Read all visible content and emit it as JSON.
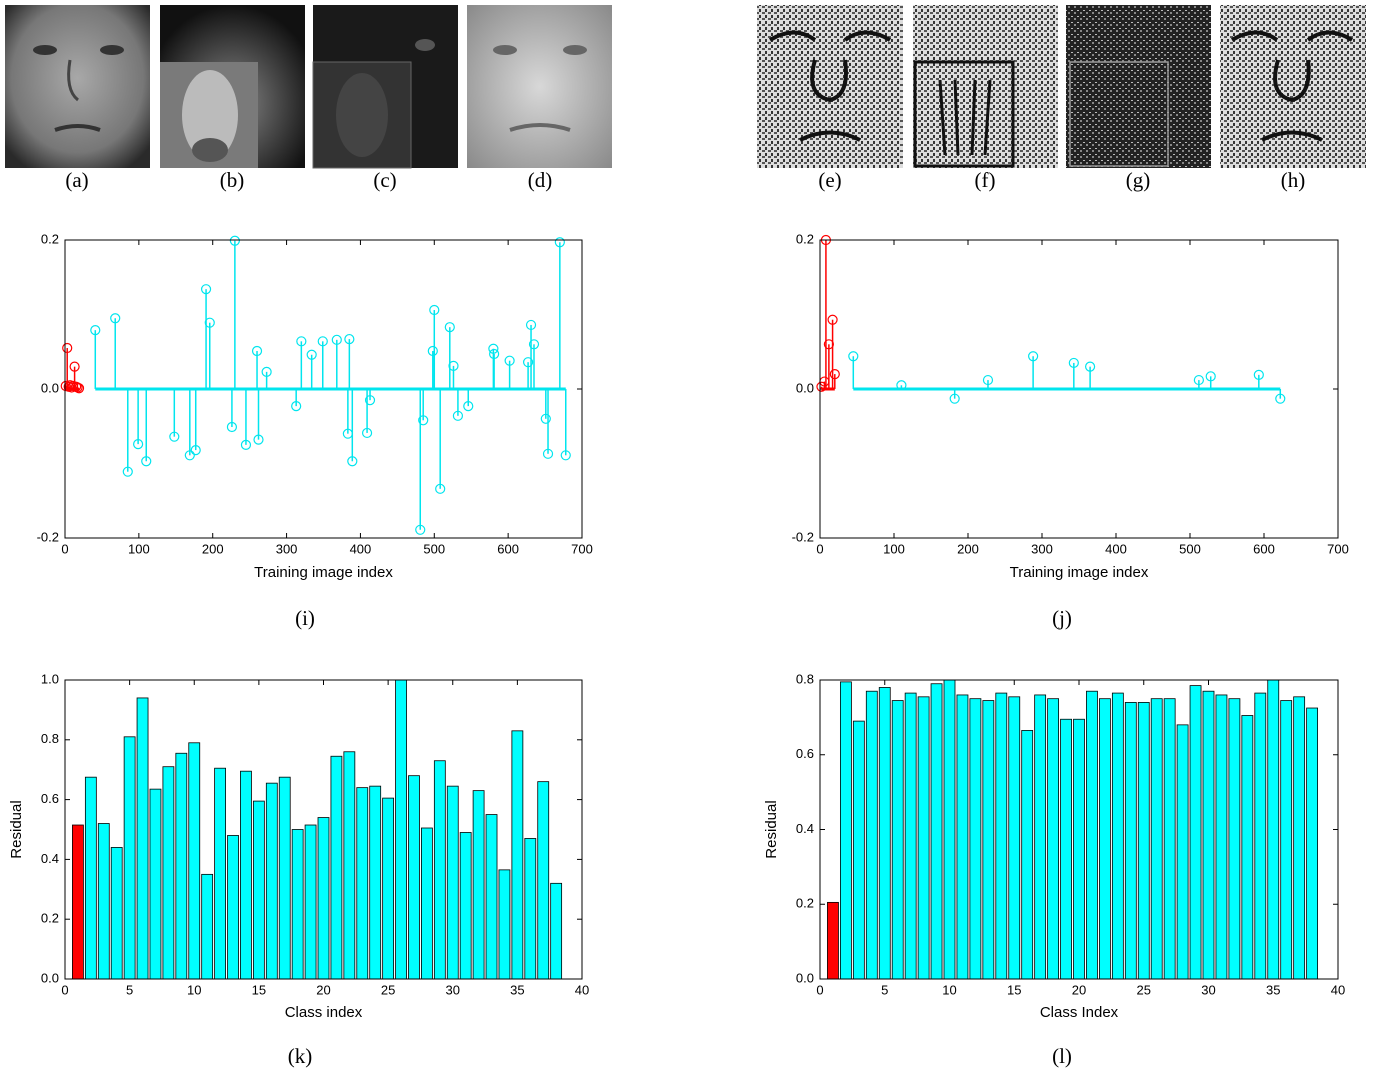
{
  "images": [
    "(a)",
    "(b)",
    "(c)",
    "(d)",
    "(e)",
    "(f)",
    "(g)",
    "(h)"
  ],
  "chart_data": [
    {
      "type": "stem",
      "caption": "(i)",
      "x_label": "Training image index",
      "xlim": [
        0,
        700
      ],
      "xticks": [
        0,
        100,
        200,
        300,
        400,
        500,
        600,
        700
      ],
      "ylim": [
        -0.2,
        0.2
      ],
      "yticks": [
        -0.2,
        {
          "value": 0,
          "label": "0.0"
        },
        0.2
      ],
      "series": [
        {
          "color": "#ff0000",
          "x": [
            1,
            3,
            5,
            7,
            9,
            11,
            13,
            15,
            17,
            19
          ],
          "values": [
            0.004,
            0.055,
            0.003,
            0.005,
            0.002,
            0.004,
            0.03,
            0.003,
            0.002,
            0.001
          ]
        },
        {
          "color": "#00e5ee",
          "x": [
            41,
            68,
            85,
            99,
            110,
            148,
            169,
            177,
            191,
            196,
            226,
            230,
            245,
            260,
            262,
            273,
            313,
            320,
            334,
            349,
            368,
            383,
            385,
            389,
            409,
            413,
            481,
            485,
            498,
            500,
            508,
            521,
            526,
            532,
            546,
            580,
            581,
            602,
            627,
            631,
            635,
            651,
            654,
            670,
            678
          ],
          "values": [
            0.079,
            0.095,
            -0.111,
            -0.074,
            -0.097,
            -0.064,
            -0.089,
            -0.082,
            0.134,
            0.089,
            -0.051,
            0.199,
            -0.075,
            0.051,
            -0.068,
            0.023,
            -0.023,
            0.064,
            0.046,
            0.064,
            0.066,
            -0.06,
            0.067,
            -0.097,
            -0.059,
            -0.015,
            -0.189,
            -0.042,
            0.051,
            0.106,
            -0.134,
            0.083,
            0.031,
            -0.036,
            -0.023,
            0.054,
            0.047,
            0.038,
            0.036,
            0.086,
            0.06,
            -0.04,
            -0.087,
            0.197,
            -0.089
          ]
        }
      ]
    },
    {
      "type": "stem",
      "caption": "(j)",
      "x_label": "Training image index",
      "xlim": [
        0,
        700
      ],
      "xticks": [
        0,
        100,
        200,
        300,
        400,
        500,
        600,
        700
      ],
      "ylim": [
        -0.2,
        0.2
      ],
      "yticks": [
        -0.2,
        {
          "value": 0,
          "label": "0.0"
        },
        0.2
      ],
      "series": [
        {
          "color": "#ff0000",
          "x": [
            2,
            6,
            8,
            12,
            17,
            20
          ],
          "values": [
            0.003,
            0.01,
            0.2,
            0.06,
            0.093,
            0.02
          ]
        },
        {
          "color": "#00e5ee",
          "x": [
            45,
            110,
            182,
            227,
            288,
            343,
            365,
            512,
            528,
            593,
            622
          ],
          "values": [
            0.044,
            0.005,
            -0.013,
            0.012,
            0.044,
            0.035,
            0.03,
            0.012,
            0.017,
            0.019,
            -0.013
          ]
        }
      ]
    },
    {
      "type": "bar",
      "caption": "(k)",
      "x_label": "Class index",
      "y_label": "Residual",
      "xlim": [
        0,
        40
      ],
      "xticks": [
        0,
        5,
        10,
        15,
        20,
        25,
        30,
        35,
        40
      ],
      "ylim": [
        0,
        1
      ],
      "yticks": [
        {
          "value": 0,
          "label": "0.0"
        },
        0.2,
        0.4,
        0.6,
        0.8,
        {
          "value": 1,
          "label": "1.0"
        }
      ],
      "x": [
        1,
        2,
        3,
        4,
        5,
        6,
        7,
        8,
        9,
        10,
        11,
        12,
        13,
        14,
        15,
        16,
        17,
        18,
        19,
        20,
        21,
        22,
        23,
        24,
        25,
        26,
        27,
        28,
        29,
        30,
        31,
        32,
        33,
        34,
        35,
        36,
        37,
        38
      ],
      "values": [
        0.515,
        0.675,
        0.52,
        0.44,
        0.81,
        0.94,
        0.635,
        0.71,
        0.755,
        0.79,
        0.35,
        0.705,
        0.48,
        0.695,
        0.595,
        0.655,
        0.675,
        0.5,
        0.515,
        0.54,
        0.745,
        0.76,
        0.64,
        0.645,
        0.605,
        1.0,
        0.68,
        0.505,
        0.73,
        0.645,
        0.49,
        0.63,
        0.55,
        0.365,
        0.83,
        0.47,
        0.66,
        0.32
      ],
      "colors": [
        "#ff0000",
        "#00ffff"
      ]
    },
    {
      "type": "bar",
      "caption": "(l)",
      "x_label": "Class Index",
      "y_label": "Residual",
      "xlim": [
        0,
        40
      ],
      "xticks": [
        0,
        5,
        10,
        15,
        20,
        25,
        30,
        35,
        40
      ],
      "ylim": [
        0,
        0.8
      ],
      "yticks": [
        {
          "value": 0,
          "label": "0.0"
        },
        0.2,
        0.4,
        0.6,
        0.8
      ],
      "x": [
        1,
        2,
        3,
        4,
        5,
        6,
        7,
        8,
        9,
        10,
        11,
        12,
        13,
        14,
        15,
        16,
        17,
        18,
        19,
        20,
        21,
        22,
        23,
        24,
        25,
        26,
        27,
        28,
        29,
        30,
        31,
        32,
        33,
        34,
        35,
        36,
        37,
        38
      ],
      "values": [
        0.205,
        0.795,
        0.69,
        0.77,
        0.78,
        0.745,
        0.765,
        0.755,
        0.79,
        0.8,
        0.76,
        0.75,
        0.745,
        0.765,
        0.755,
        0.665,
        0.76,
        0.75,
        0.695,
        0.695,
        0.77,
        0.75,
        0.765,
        0.74,
        0.74,
        0.75,
        0.75,
        0.68,
        0.785,
        0.77,
        0.76,
        0.75,
        0.705,
        0.765,
        0.8,
        0.745,
        0.755,
        0.725
      ],
      "colors": [
        "#ff0000",
        "#00ffff"
      ]
    }
  ]
}
